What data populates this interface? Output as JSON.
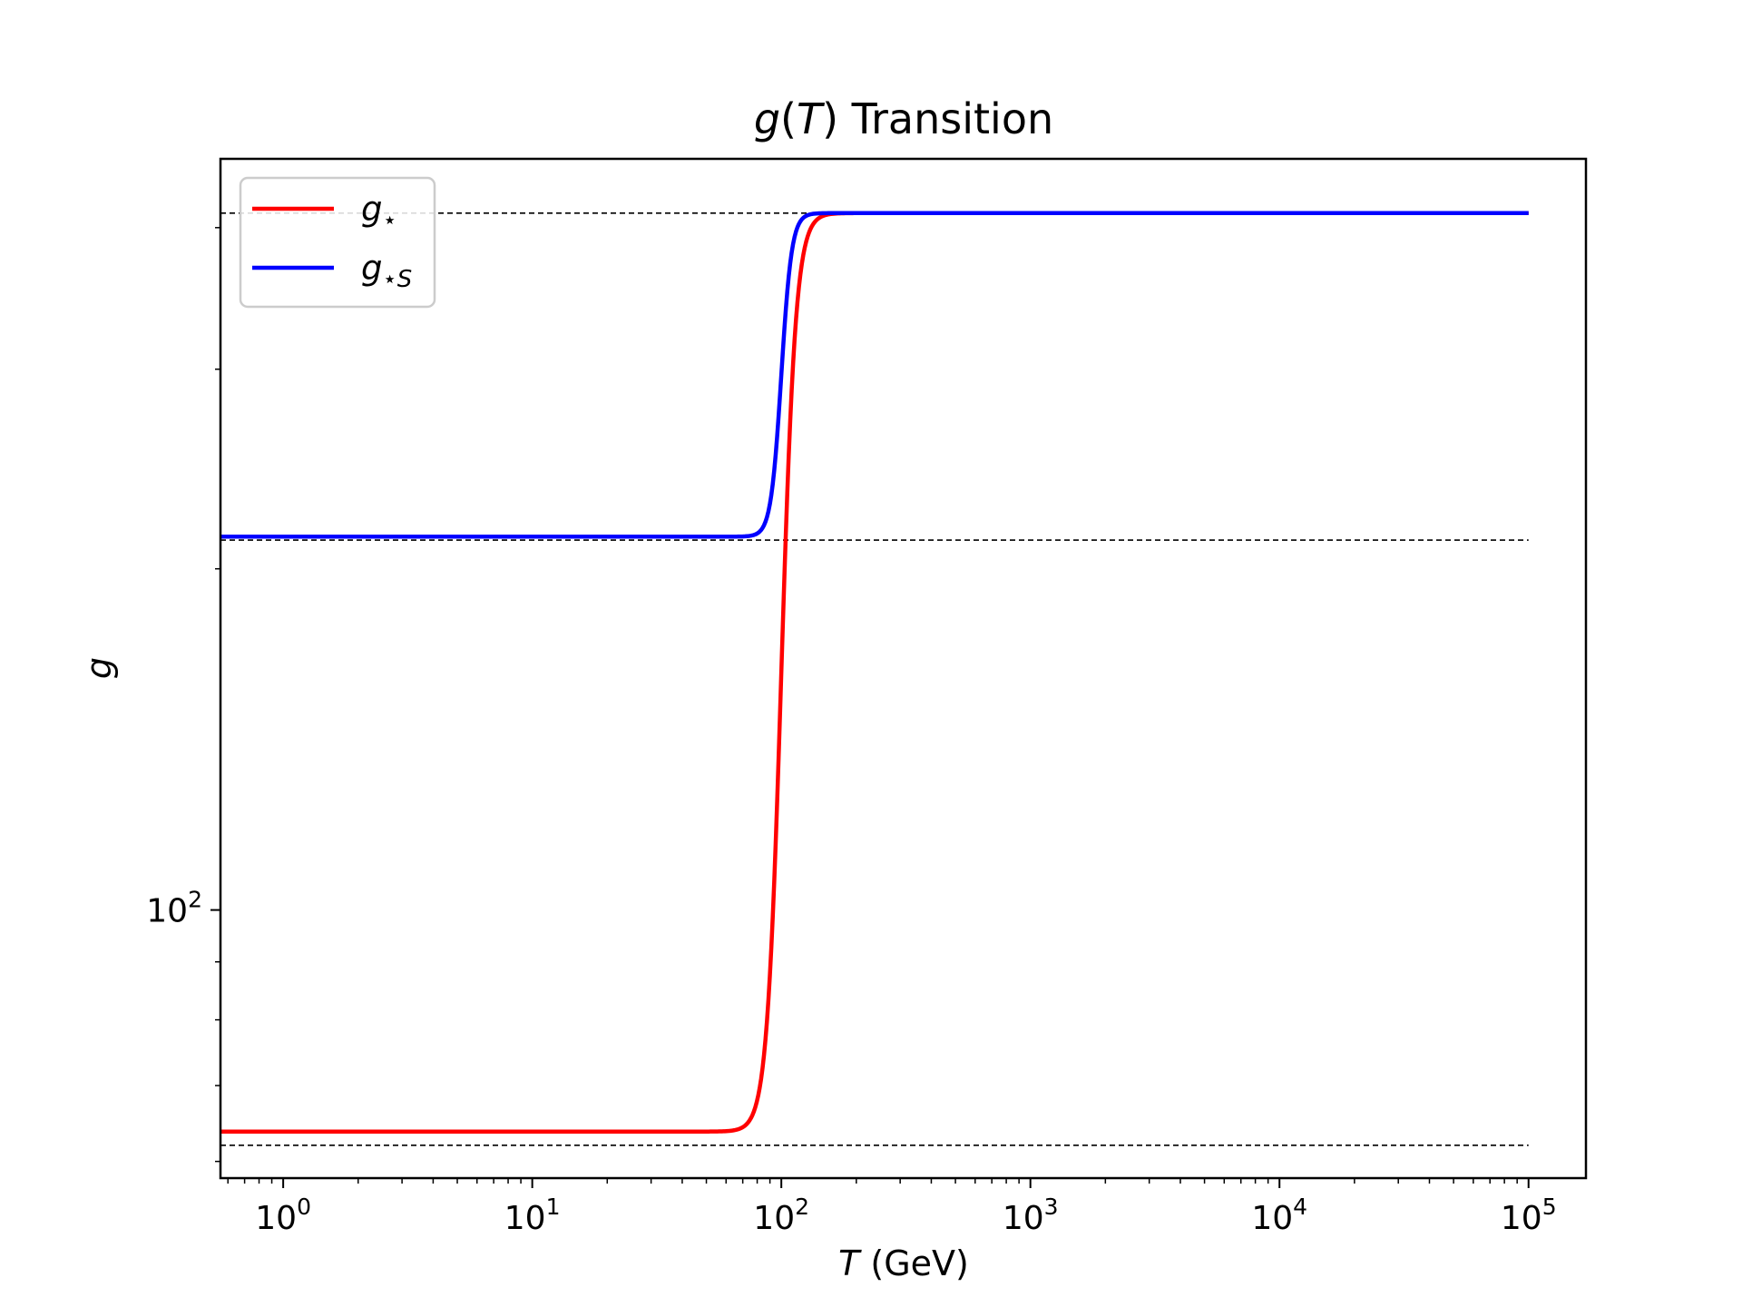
{
  "chart_data": {
    "type": "line",
    "title": {
      "prefix": "g",
      "open": "(",
      "var": "T",
      "close": ")",
      "rest": " Transition"
    },
    "xlabel": {
      "var": "T",
      "rest": " (GeV)"
    },
    "ylabel": "g",
    "x_scale": "log",
    "y_scale": "log",
    "xlim": [
      0.56,
      170000
    ],
    "ylim": [
      58,
      460
    ],
    "x_ticks": [
      {
        "base": "10",
        "exp": "0",
        "value": 1
      },
      {
        "base": "10",
        "exp": "1",
        "value": 10
      },
      {
        "base": "10",
        "exp": "2",
        "value": 100
      },
      {
        "base": "10",
        "exp": "3",
        "value": 1000
      },
      {
        "base": "10",
        "exp": "4",
        "value": 10000
      },
      {
        "base": "10",
        "exp": "5",
        "value": 100000
      }
    ],
    "y_ticks": [
      {
        "base": "10",
        "exp": "2",
        "value": 100
      }
    ],
    "reference_lines": [
      62,
      212,
      412
    ],
    "transition_temperature": 100,
    "x_range": [
      0.56,
      100000
    ],
    "series": [
      {
        "name": "g⋆",
        "name_base": "g",
        "name_sub": "⋆",
        "color": "#ff0000",
        "low": 63.75,
        "high": 412,
        "width": 0.058
      },
      {
        "name": "g⋆S",
        "name_base": "g",
        "name_sub": "⋆S",
        "color": "#0000ff",
        "low": 213.5,
        "high": 412,
        "width": 0.042
      }
    ],
    "legend_position": "upper left",
    "grid": false
  }
}
